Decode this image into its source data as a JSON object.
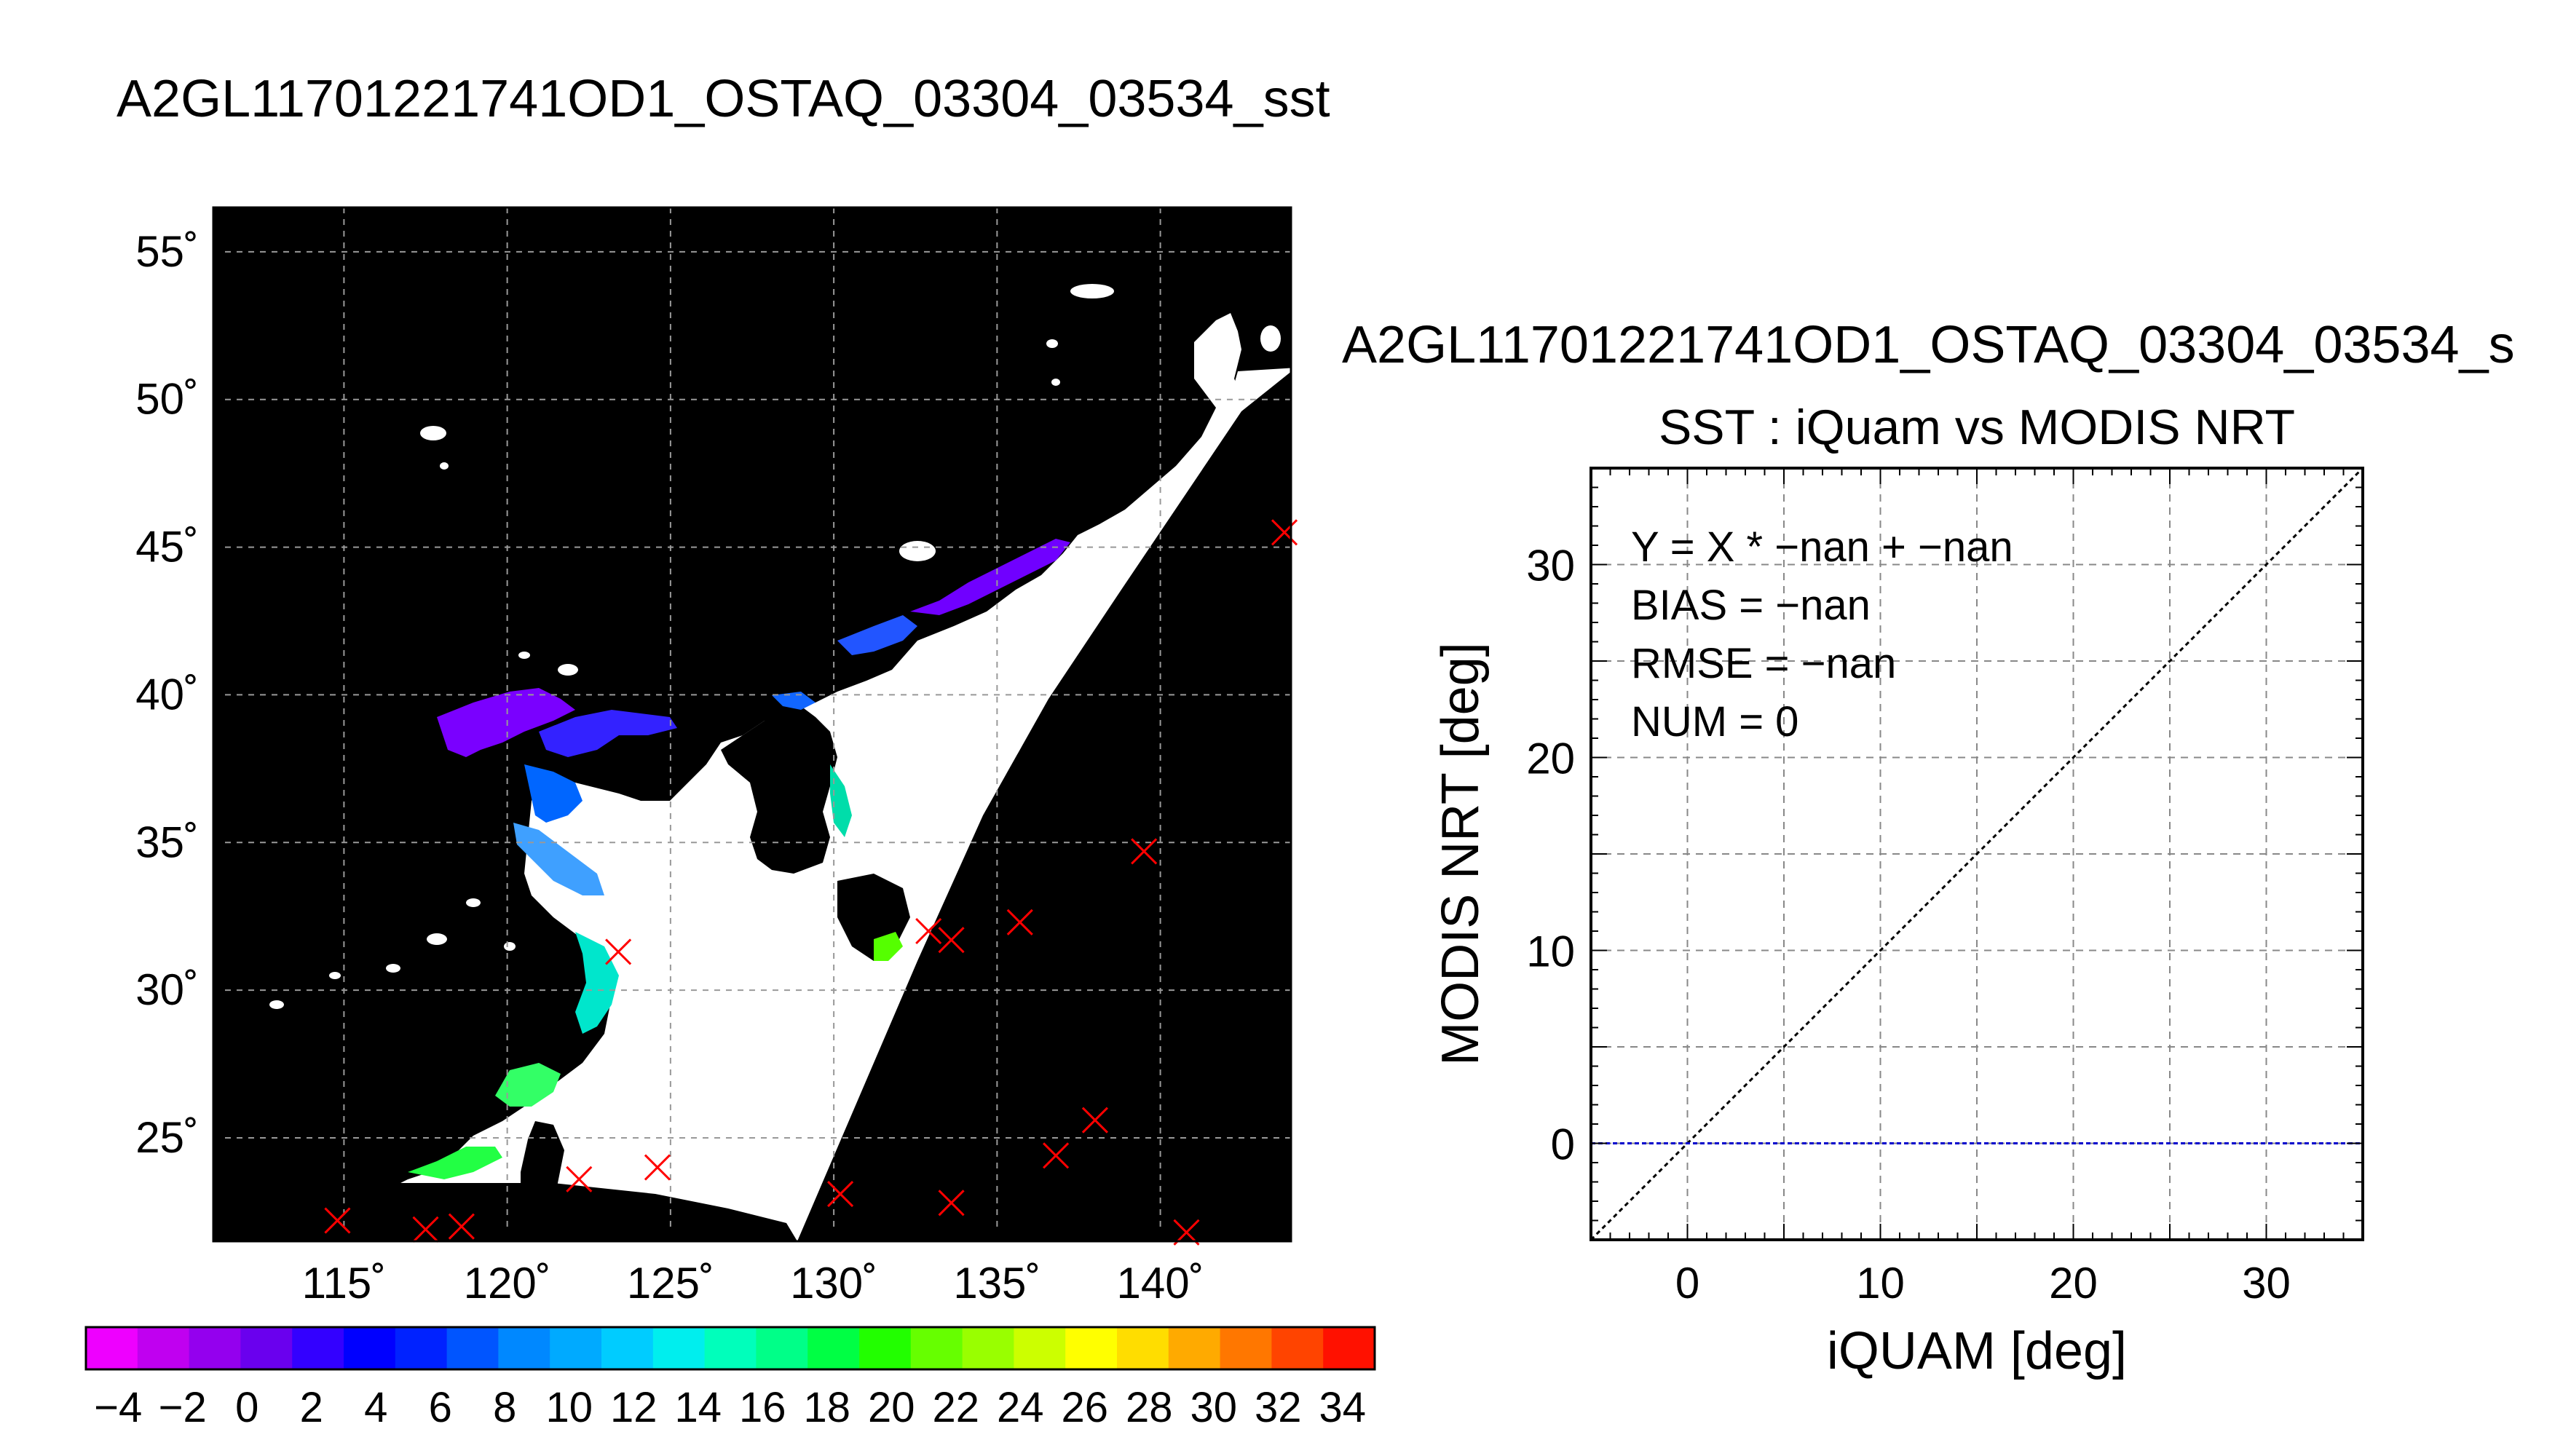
{
  "page_title": "A2GL11701221741OD1_OSTAQ_03304_03534_sst",
  "map": {
    "type": "heatmap",
    "lon_range": [
      111,
      144
    ],
    "lat_range": [
      21.5,
      56.5
    ],
    "lon_ticks": [
      115,
      120,
      125,
      130,
      135,
      140
    ],
    "lat_ticks": [
      25,
      30,
      35,
      40,
      45,
      50,
      55
    ],
    "lon_tick_labels": [
      "115˚",
      "120˚",
      "125˚",
      "130˚",
      "135˚",
      "140˚"
    ],
    "lat_tick_labels": [
      "25˚",
      "30˚",
      "35˚",
      "40˚",
      "45˚",
      "50˚",
      "55˚"
    ],
    "grid": true,
    "background_color": "#000000",
    "cloud_color": "#ffffff",
    "markers_color": "#ff0000",
    "insitu_markers": [
      {
        "lon": 114.8,
        "lat": 22.2
      },
      {
        "lon": 117.5,
        "lat": 21.9
      },
      {
        "lon": 118.6,
        "lat": 22.0
      },
      {
        "lon": 122.2,
        "lat": 23.6
      },
      {
        "lon": 124.6,
        "lat": 24.0
      },
      {
        "lon": 123.4,
        "lat": 31.3
      },
      {
        "lon": 130.2,
        "lat": 23.1
      },
      {
        "lon": 133.6,
        "lat": 22.8
      },
      {
        "lon": 132.9,
        "lat": 32.0
      },
      {
        "lon": 133.6,
        "lat": 31.7
      },
      {
        "lon": 135.7,
        "lat": 32.3
      },
      {
        "lon": 136.8,
        "lat": 24.4
      },
      {
        "lon": 138.0,
        "lat": 25.6
      },
      {
        "lon": 139.5,
        "lat": 34.7
      },
      {
        "lon": 140.8,
        "lat": 21.8
      },
      {
        "lon": 143.8,
        "lat": 45.5
      }
    ]
  },
  "colorbar": {
    "tick_labels": [
      "−4",
      "−2",
      "0",
      "2",
      "4",
      "6",
      "8",
      "10",
      "12",
      "14",
      "16",
      "18",
      "20",
      "22",
      "24",
      "26",
      "28",
      "30",
      "32",
      "34"
    ],
    "colors": [
      "#ee00ff",
      "#c000f0",
      "#9400ee",
      "#6a00ee",
      "#3300ff",
      "#0000ff",
      "#0022ff",
      "#0055ff",
      "#0088ff",
      "#00aaff",
      "#00ccff",
      "#00eeee",
      "#00ffbb",
      "#00ff88",
      "#00ff44",
      "#22ff00",
      "#66ff00",
      "#99ff00",
      "#ccff00",
      "#ffff00",
      "#ffdd00",
      "#ffaa00",
      "#ff7700",
      "#ff4400",
      "#ff1100"
    ]
  },
  "scatter": {
    "page_heading": "A2GL11701221741OD1_OSTAQ_03304_03534_s",
    "title": "SST : iQuam vs MODIS NRT",
    "xlabel": "iQUAM [deg]",
    "ylabel": "MODIS NRT [deg]",
    "xlim": [
      -5,
      35
    ],
    "ylim": [
      -5,
      35
    ],
    "xticks": [
      0,
      10,
      20,
      30
    ],
    "yticks": [
      0,
      10,
      20,
      30
    ],
    "xtick_labels": [
      "0",
      "10",
      "20",
      "30"
    ],
    "ytick_labels": [
      "0",
      "10",
      "20",
      "30"
    ],
    "grid": true,
    "stats": [
      "Y = X * −nan + −nan",
      "BIAS = −nan",
      "RMSE = −nan",
      "NUM = 0"
    ],
    "one_to_one_line_color": "#000000",
    "zero_line_color": "#0000cc"
  }
}
